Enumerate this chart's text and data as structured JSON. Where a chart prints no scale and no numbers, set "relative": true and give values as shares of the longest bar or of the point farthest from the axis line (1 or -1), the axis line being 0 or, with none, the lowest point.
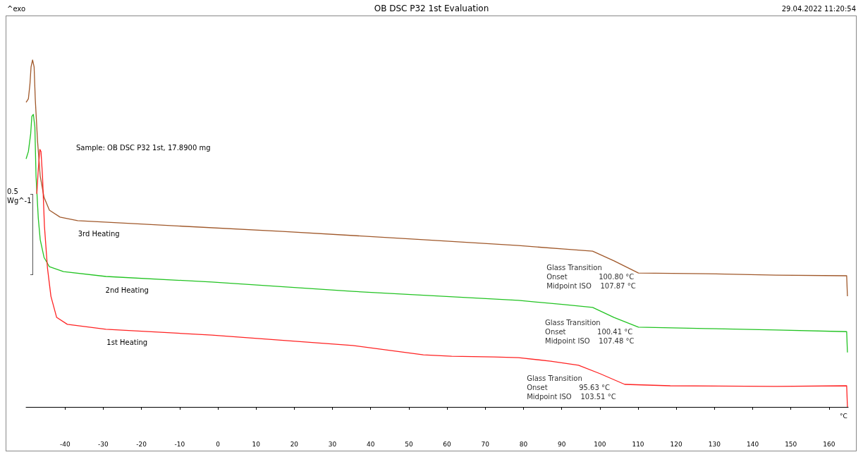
{
  "chart_data": {
    "type": "line",
    "title": "OB DSC P32 1st Evaluation",
    "xlabel": "°C",
    "relative": true,
    "xlim": [
      -50.2,
      165
    ],
    "xticks": [
      -40,
      -30,
      -20,
      -10,
      0,
      10,
      20,
      30,
      40,
      50,
      60,
      70,
      80,
      90,
      100,
      110,
      120,
      130,
      140,
      150,
      160
    ],
    "grid": false,
    "legend": false,
    "annotations": [
      "^exo",
      "29.04.2022 11:20:54",
      "Sample: OB DSC P32 1st, 17.8900 mg",
      "0.5\nWg^-1",
      {
        "text": "Glass Transition\nOnset              100.80 °C\nMidpoint ISO    107.87 °C",
        "x": 100.8,
        "y": 0.44
      },
      {
        "text": "Glass Transition\nOnset              100.41 °C\nMidpoint ISO    107.48 °C",
        "x": 100.41,
        "y": 0.28
      },
      {
        "text": "Glass Transition\nOnset              95.63 °C\nMidpoint ISO    103.51 °C",
        "x": 95.63,
        "y": 0.12
      }
    ],
    "series": [
      {
        "name": "3rd Heating",
        "color": "#a0582a",
        "x": [
          -50.2,
          -49.6,
          -49.2,
          -48.9,
          -48.5,
          -48.1,
          -47.8,
          -47.2,
          -46.5,
          -45.5,
          -44.1,
          -41.3,
          -36.7,
          -20.1,
          16.9,
          53.8,
          78.7,
          90.7,
          98.1,
          103.7,
          110.1,
          127.7,
          146.1,
          164.6,
          164.8
        ],
        "values": [
          0.878,
          0.888,
          0.929,
          0.98,
          1,
          0.98,
          0.888,
          0.766,
          0.665,
          0.604,
          0.567,
          0.547,
          0.537,
          0.527,
          0.506,
          0.482,
          0.465,
          0.455,
          0.449,
          0.421,
          0.386,
          0.384,
          0.38,
          0.378,
          0.319
        ]
      },
      {
        "name": "2nd Heating",
        "color": "#22c322",
        "x": [
          -50.2,
          -49.6,
          -49.0,
          -48.7,
          -48.3,
          -47.9,
          -47.6,
          -47.0,
          -46.5,
          -45.5,
          -44.1,
          -40.4,
          -29.3,
          -1.6,
          35.3,
          78.7,
          90.7,
          98.1,
          103.7,
          110.1,
          127.7,
          146.1,
          164.6,
          164.8
        ],
        "values": [
          0.715,
          0.736,
          0.787,
          0.837,
          0.843,
          0.807,
          0.665,
          0.543,
          0.482,
          0.431,
          0.404,
          0.39,
          0.376,
          0.36,
          0.333,
          0.307,
          0.295,
          0.287,
          0.258,
          0.23,
          0.226,
          0.222,
          0.217,
          0.157
        ]
      },
      {
        "name": "1st Heating",
        "color": "#ff2222",
        "x": [
          -47.4,
          -47.0,
          -46.6,
          -46.3,
          -45.9,
          -45.4,
          -44.6,
          -43.7,
          -42.2,
          -39.4,
          -29.3,
          -1.6,
          35.3,
          53.8,
          61.2,
          72.3,
          78.7,
          87.1,
          94.4,
          100.0,
          106.5,
          118.4,
          146.1,
          164.6,
          164.8
        ],
        "values": [
          0.614,
          0.685,
          0.742,
          0.736,
          0.665,
          0.522,
          0.4,
          0.319,
          0.258,
          0.238,
          0.224,
          0.207,
          0.177,
          0.15,
          0.146,
          0.144,
          0.142,
          0.132,
          0.12,
          0.096,
          0.065,
          0.061,
          0.059,
          0.061,
          0
        ]
      }
    ]
  }
}
